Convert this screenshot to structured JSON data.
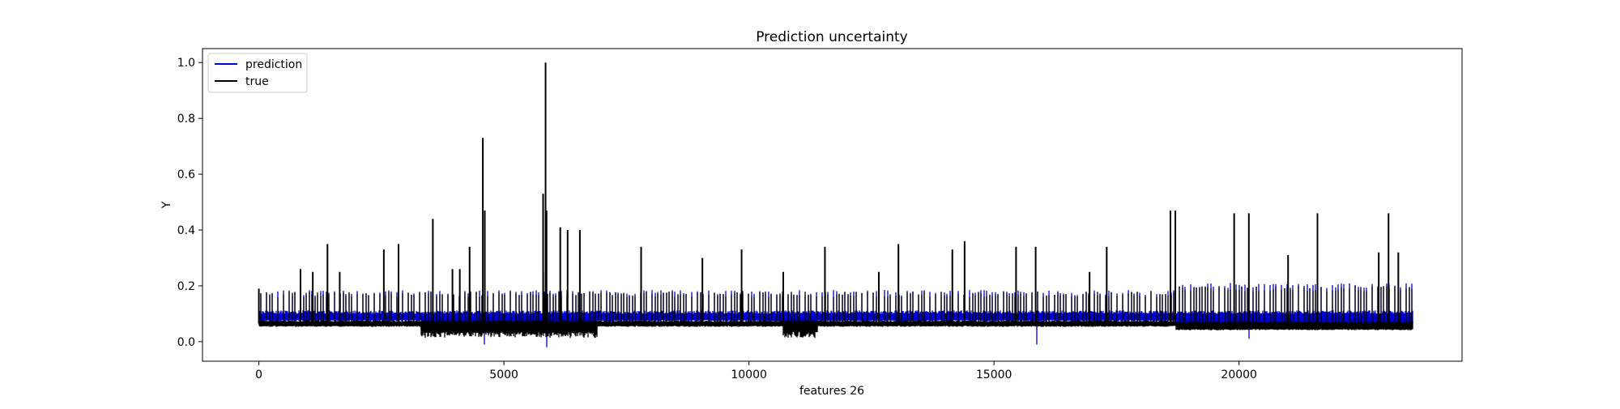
{
  "chart_data": {
    "type": "line",
    "title": "Prediction uncertainty",
    "xlabel": "features 26",
    "ylabel": "Y",
    "xlim": [
      -1150,
      24550
    ],
    "ylim": [
      -0.07,
      1.05
    ],
    "xticks": [
      0,
      5000,
      10000,
      15000,
      20000
    ],
    "xtick_labels": [
      "0",
      "5000",
      "10000",
      "15000",
      "20000"
    ],
    "yticks": [
      0.0,
      0.2,
      0.4,
      0.6,
      0.8,
      1.0
    ],
    "ytick_labels": [
      "0.0",
      "0.2",
      "0.4",
      "0.6",
      "0.8",
      "1.0"
    ],
    "grid": false,
    "legend_position": "top-left",
    "n_points": 23550,
    "series": [
      {
        "name": "prediction",
        "color": "#0000cc",
        "baseline": 0.09,
        "periodic_peak": 0.175,
        "extremes_x": [
          4600,
          5810,
          5870,
          15880,
          20200
        ],
        "extremes_y": [
          -0.01,
          0.25,
          -0.02,
          -0.01,
          0.01
        ]
      },
      {
        "name": "true",
        "color": "#000000",
        "baseline": 0.065,
        "periodic_peak": 0.17,
        "spikes_x": [
          0,
          850,
          1100,
          1400,
          1650,
          2550,
          2850,
          3550,
          3950,
          4100,
          4300,
          4570,
          4610,
          5800,
          5850,
          5870,
          6150,
          6300,
          6550,
          7800,
          9050,
          9850,
          10700,
          11550,
          12650,
          13050,
          14150,
          14400,
          15450,
          15850,
          16950,
          17300,
          18600,
          18700,
          19900,
          20200,
          21000,
          21600,
          22850,
          23050,
          23250
        ],
        "spikes_y": [
          0.19,
          0.26,
          0.25,
          0.35,
          0.25,
          0.33,
          0.35,
          0.44,
          0.26,
          0.26,
          0.34,
          0.73,
          0.47,
          0.53,
          1.0,
          0.47,
          0.41,
          0.4,
          0.4,
          0.34,
          0.3,
          0.33,
          0.25,
          0.34,
          0.25,
          0.35,
          0.33,
          0.36,
          0.34,
          0.34,
          0.25,
          0.34,
          0.47,
          0.47,
          0.46,
          0.46,
          0.31,
          0.46,
          0.32,
          0.46,
          0.32
        ]
      }
    ]
  }
}
